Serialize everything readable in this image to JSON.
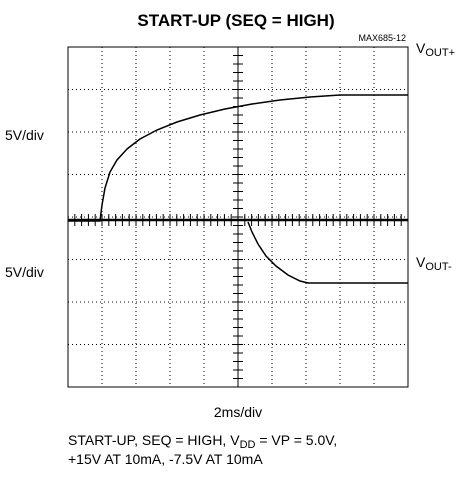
{
  "header": {
    "title": "START-UP (SEQ = HIGH)",
    "code": "MAX685-12"
  },
  "labels": {
    "upper_scale": "5V/div",
    "lower_scale": "5V/div",
    "time_scale": "2ms/div",
    "upper_trace": {
      "main": "V",
      "sub": "OUT+"
    },
    "lower_trace": {
      "main": "V",
      "sub": "OUT-"
    }
  },
  "caption": {
    "line1": {
      "before": "START-UP, SEQ = HIGH, V",
      "sub": "DD",
      "after": " = VP = 5.0V,"
    },
    "line2": "+15V AT 10mA, -7.5V AT 10mA"
  }
}
